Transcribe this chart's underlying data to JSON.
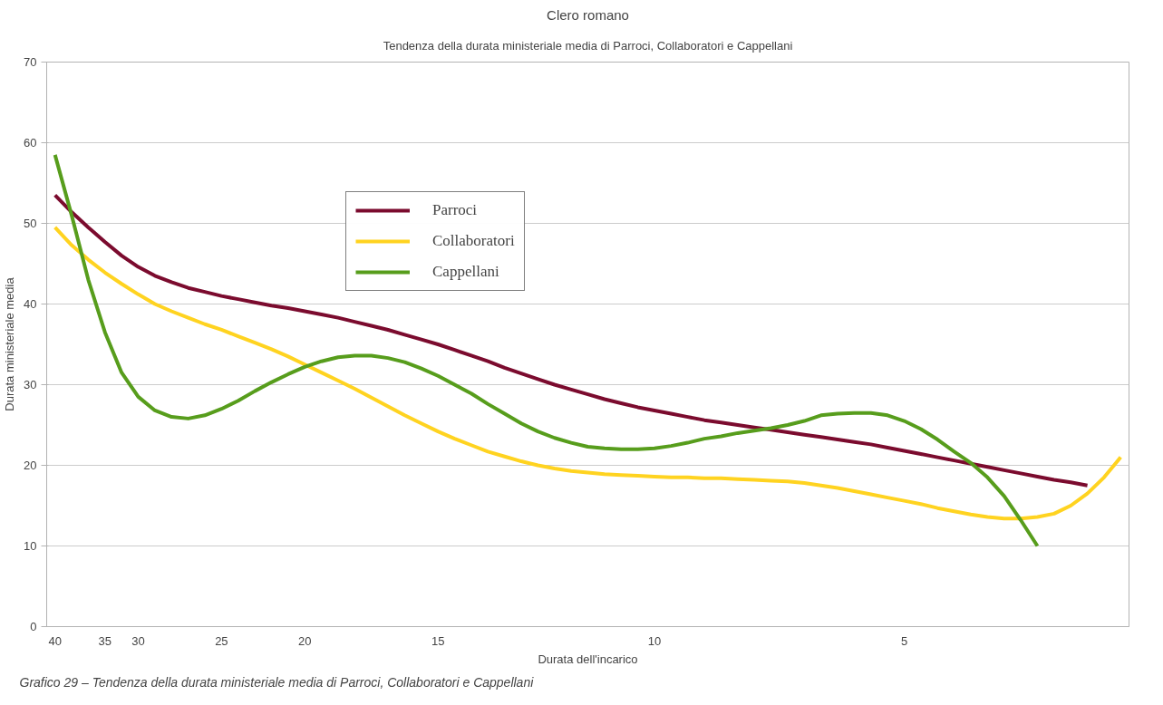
{
  "chart_data": {
    "type": "line",
    "title": "Clero romano",
    "subtitle": "Tendenza della durata ministeriale media di Parroci, Collaboratori e Cappellani",
    "xlabel": "Durata dell'incarico",
    "ylabel": "Durata ministeriale media",
    "annotations": [
      "Grafico 29 – Tendenza della durata ministeriale media di Parroci, Collaboratori e Cappellani"
    ],
    "categories": [
      "40",
      null,
      null,
      "35",
      null,
      "30",
      null,
      null,
      null,
      null,
      "25",
      null,
      null,
      null,
      null,
      "20",
      null,
      null,
      null,
      null,
      null,
      null,
      null,
      "15",
      null,
      null,
      null,
      null,
      null,
      null,
      null,
      null,
      null,
      null,
      null,
      null,
      "10",
      null,
      null,
      null,
      null,
      null,
      null,
      null,
      null,
      null,
      null,
      null,
      null,
      null,
      null,
      "5",
      null,
      null,
      null,
      null,
      null,
      null,
      null,
      null,
      null,
      null,
      null,
      null,
      null
    ],
    "series": [
      {
        "name": "Parroci",
        "color": "#7b0b2e",
        "values": [
          53.5,
          51.4,
          49.5,
          47.7,
          46,
          44.6,
          43.5,
          42.7,
          42,
          41.5,
          41,
          40.6,
          40.2,
          39.8,
          39.5,
          39.1,
          38.7,
          38.3,
          37.8,
          37.3,
          36.8,
          36.2,
          35.6,
          35,
          34.3,
          33.6,
          32.9,
          32.1,
          31.4,
          30.7,
          30,
          29.4,
          28.8,
          28.2,
          27.7,
          27.2,
          26.8,
          26.4,
          26,
          25.6,
          25.3,
          25,
          24.7,
          24.4,
          24.1,
          23.8,
          23.5,
          23.2,
          22.9,
          22.6,
          22.2,
          21.8,
          21.4,
          21,
          20.6,
          20.2,
          19.8,
          19.4,
          19,
          18.6,
          18.2,
          17.9,
          17.5,
          null,
          null
        ]
      },
      {
        "name": "Collaboratori",
        "color": "#ffd320",
        "values": [
          49.5,
          47.3,
          45.5,
          43.9,
          42.5,
          41.2,
          40,
          39.1,
          38.3,
          37.5,
          36.8,
          36,
          35.2,
          34.4,
          33.5,
          32.5,
          31.5,
          30.5,
          29.5,
          28.4,
          27.3,
          26.2,
          25.2,
          24.2,
          23.3,
          22.5,
          21.7,
          21.1,
          20.5,
          20,
          19.6,
          19.3,
          19.1,
          18.9,
          18.8,
          18.7,
          18.6,
          18.5,
          18.5,
          18.4,
          18.4,
          18.3,
          18.2,
          18.1,
          18,
          17.8,
          17.5,
          17.2,
          16.8,
          16.4,
          16,
          15.6,
          15.2,
          14.7,
          14.3,
          13.9,
          13.6,
          13.4,
          13.4,
          13.6,
          14,
          15,
          16.5,
          18.5,
          21
        ]
      },
      {
        "name": "Cappellani",
        "color": "#579d1c",
        "values": [
          58.5,
          51,
          43,
          36.5,
          31.5,
          28.5,
          26.8,
          26,
          25.8,
          26.2,
          27,
          28,
          29.2,
          30.3,
          31.3,
          32.2,
          32.9,
          33.4,
          33.6,
          33.6,
          33.3,
          32.8,
          32,
          31.1,
          30,
          28.9,
          27.6,
          26.4,
          25.2,
          24.2,
          23.4,
          22.8,
          22.3,
          22.1,
          22,
          22,
          22.1,
          22.4,
          22.8,
          23.3,
          23.6,
          24,
          24.3,
          24.6,
          25,
          25.5,
          26.2,
          26.4,
          26.5,
          26.5,
          26.2,
          25.5,
          24.5,
          23.2,
          21.7,
          20.3,
          18.5,
          16.2,
          13.2,
          10,
          null,
          null,
          null,
          null,
          null
        ]
      }
    ],
    "ylim": [
      0,
      70
    ],
    "yticks": [
      0,
      10,
      20,
      30,
      40,
      50,
      60,
      70
    ],
    "grid": "y",
    "legend": "top",
    "marker": "none",
    "line_style": "solid"
  }
}
